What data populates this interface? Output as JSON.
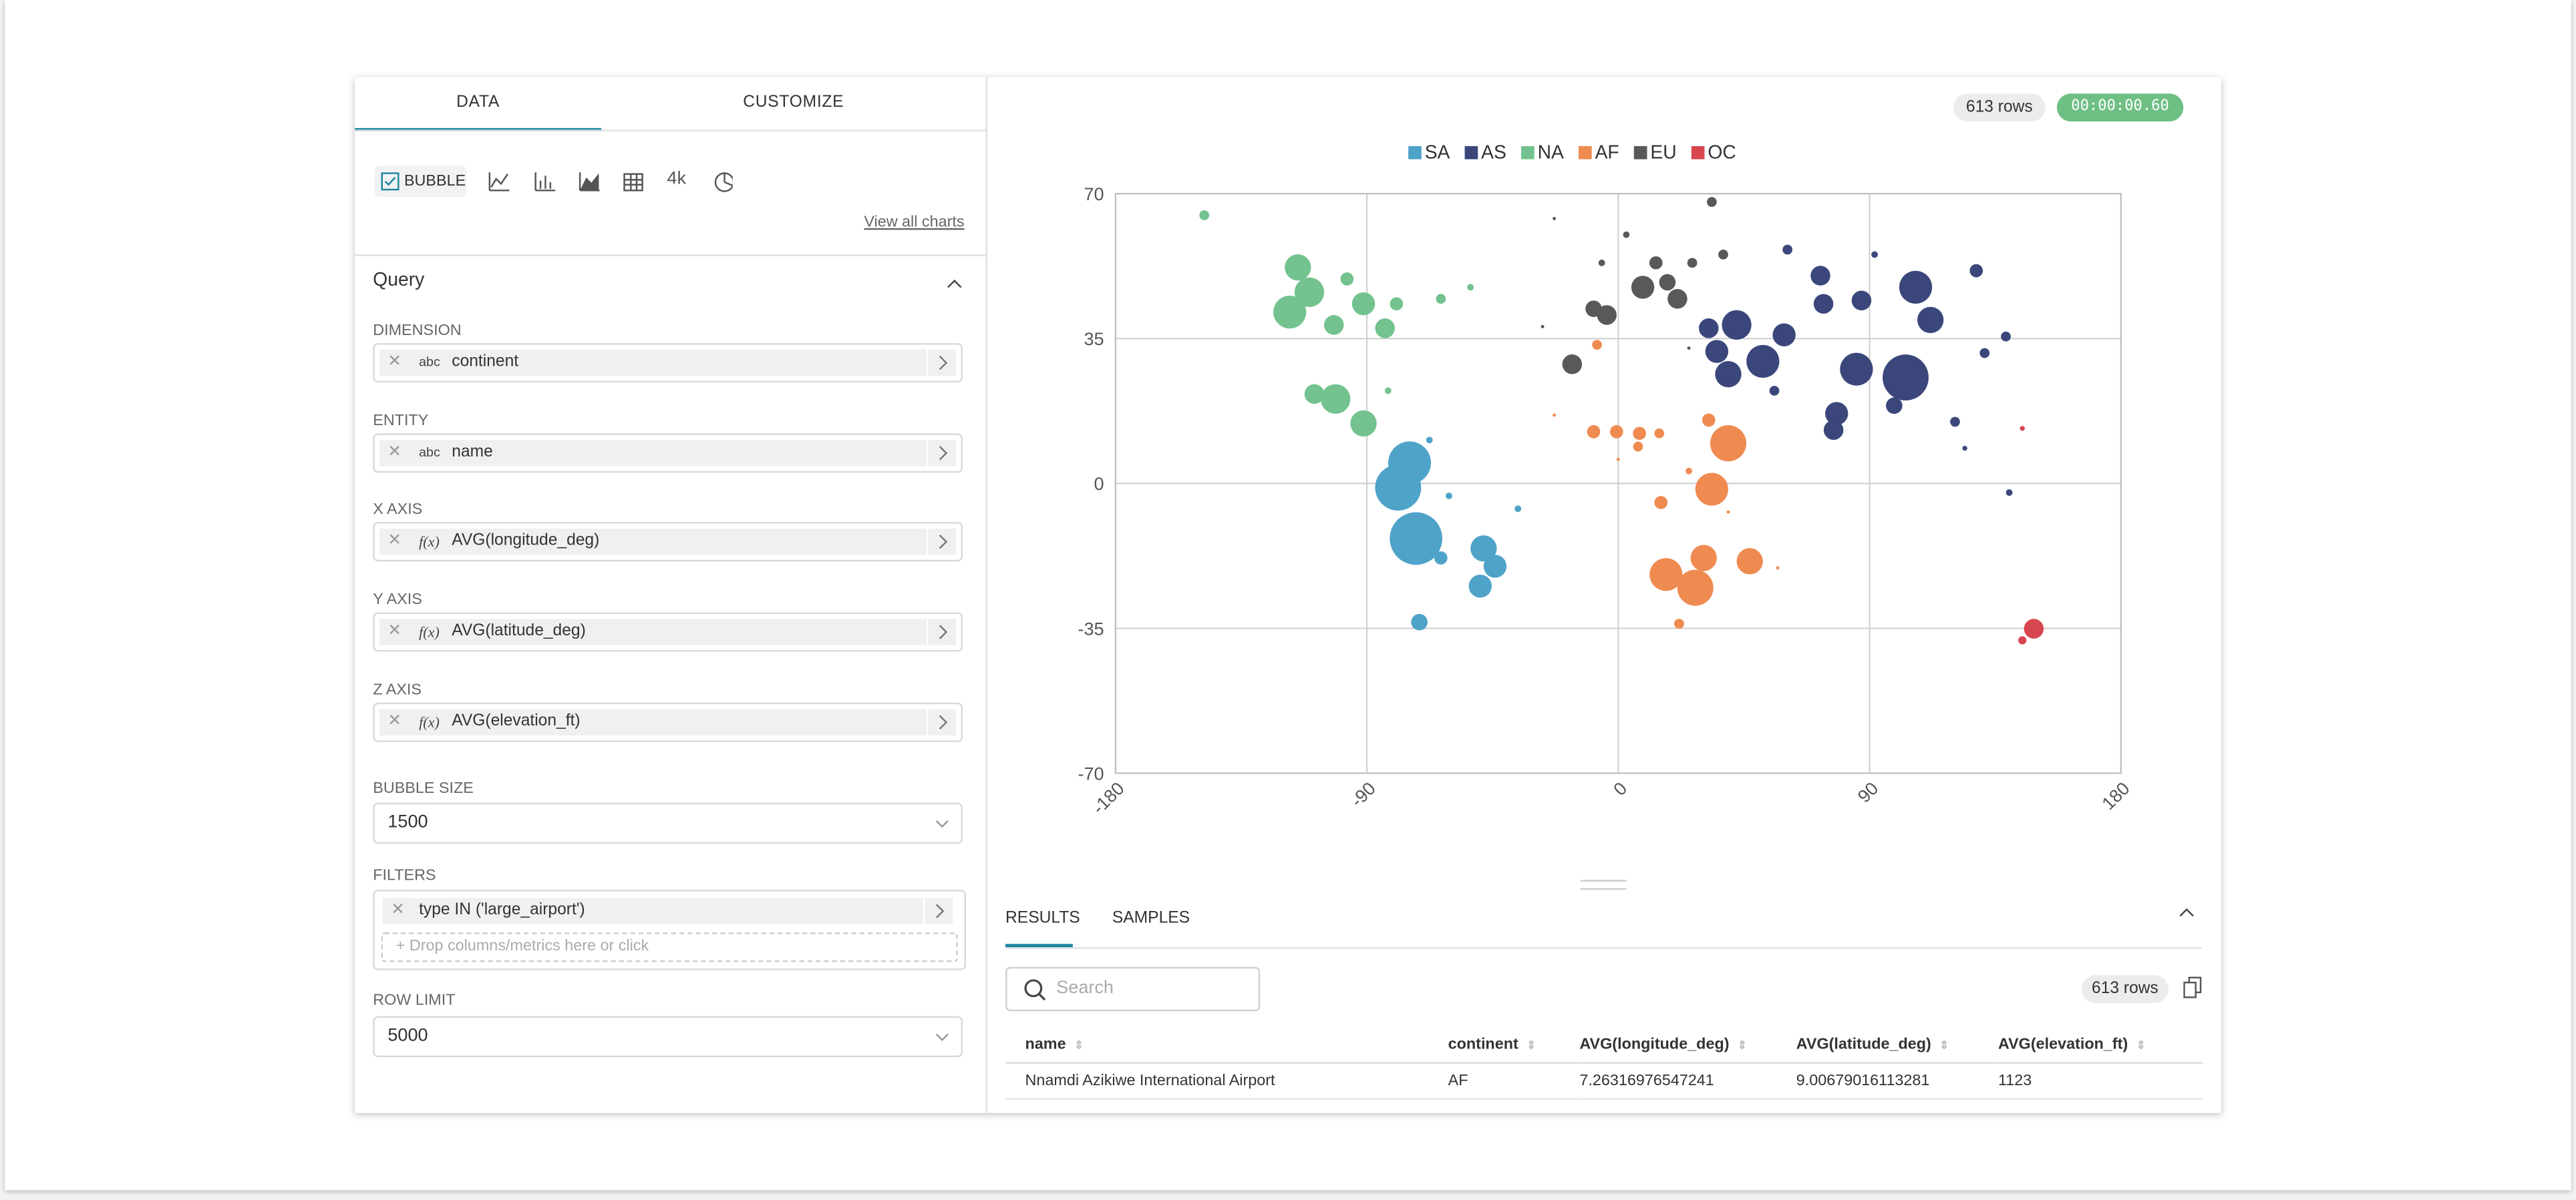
{
  "tabs": [
    "DATA",
    "CUSTOMIZE"
  ],
  "chart_types": {
    "selected": "BUBBLE",
    "count_label": "4k",
    "view_all": "View all charts"
  },
  "query": {
    "title": "Query",
    "fields": [
      {
        "label": "DIMENSION",
        "kind": "abc",
        "value": "continent"
      },
      {
        "label": "ENTITY",
        "kind": "abc",
        "value": "name"
      },
      {
        "label": "X AXIS",
        "kind": "f(x)",
        "value": "AVG(longitude_deg)"
      },
      {
        "label": "Y AXIS",
        "kind": "f(x)",
        "value": "AVG(latitude_deg)"
      },
      {
        "label": "Z AXIS",
        "kind": "f(x)",
        "value": "AVG(elevation_ft)"
      }
    ]
  },
  "bubble_size": {
    "label": "BUBBLE SIZE",
    "value": "1500"
  },
  "filters": {
    "label": "FILTERS",
    "value": "type IN ('large_airport')",
    "placeholder": "Drop columns/metrics here or click"
  },
  "row_limit": {
    "label": "ROW LIMIT",
    "value": "5000"
  },
  "status": {
    "rows": "613 rows",
    "timer": "00:00:00.60"
  },
  "chart_data": {
    "type": "bubble",
    "legend": "top",
    "grid": true,
    "xlim": [
      -180,
      180
    ],
    "ylim": [
      -70,
      70
    ],
    "xticks": [
      -180,
      -90,
      0,
      90,
      180
    ],
    "yticks": [
      -70,
      -35,
      0,
      35,
      70
    ],
    "series": [
      {
        "name": "SA",
        "color": "#4fa3c9",
        "x": [
          -74.7,
          -78.8,
          -72.4,
          -71.2,
          -48.2,
          -49.4,
          -44.1,
          -63.5,
          -60.6,
          -35.9,
          -67.6
        ],
        "values": [
          5.0,
          -1.0,
          -13.3,
          -33.5,
          -15.7,
          -24.8,
          -20.0,
          -18.0,
          -3.0,
          -6.1,
          10.5
        ],
        "size": [
          5577,
          6468,
          8448,
          825,
          2112,
          1617,
          1617,
          528,
          132,
          132,
          132
        ]
      },
      {
        "name": "AS",
        "color": "#3b477b",
        "x": [
          32.4,
          42.4,
          51.8,
          39.4,
          59.4,
          35.3,
          73.5,
          87.1,
          85.3,
          102.9,
          106.5,
          111.8,
          72.4,
          78.2,
          77.1,
          98.8,
          120.6,
          128.2,
          131.2,
          140.0,
          138.8,
          60.6,
          55.9,
          91.8,
          124.1
        ],
        "values": [
          37.5,
          38.3,
          29.5,
          26.4,
          35.9,
          31.9,
          43.4,
          44.2,
          27.6,
          25.6,
          47.4,
          39.5,
          50.2,
          16.9,
          12.9,
          18.8,
          14.9,
          51.4,
          31.5,
          -2.2,
          35.5,
          56.5,
          22.4,
          55.3,
          8.5
        ],
        "size": [
          1188,
          2673,
          3300,
          2112,
          1617,
          1617,
          1188,
          1188,
          3300,
          6468,
          3300,
          2112,
          1188,
          1617,
          1188,
          825,
          297,
          528,
          297,
          132,
          297,
          297,
          297,
          132,
          74
        ]
      },
      {
        "name": "NA",
        "color": "#73c28f",
        "x": [
          -148.2,
          -114.7,
          -117.6,
          -110.6,
          -101.8,
          -91.2,
          -83.5,
          -101.2,
          -91.2,
          -108.8,
          -97.1,
          -63.5,
          -52.9,
          -82.4,
          -79.4
        ],
        "values": [
          64.8,
          52.2,
          41.4,
          46.2,
          38.3,
          43.4,
          37.5,
          20.4,
          14.5,
          21.6,
          49.4,
          44.6,
          47.4,
          22.4,
          43.4
        ],
        "size": [
          297,
          2112,
          3300,
          2673,
          1188,
          1617,
          1188,
          2673,
          2112,
          1188,
          528,
          297,
          132,
          132,
          528
        ]
      },
      {
        "name": "AF",
        "color": "#ef8b51",
        "x": [
          39.4,
          33.5,
          27.6,
          17.1,
          30.6,
          47.1,
          15.3,
          21.8,
          -8.8,
          -0.6,
          7.6,
          7.1,
          14.7,
          32.4,
          -7.6,
          25.3,
          57.1,
          39.4,
          -22.9,
          0
        ],
        "values": [
          9.7,
          -1.4,
          -25.2,
          -22.0,
          -18.0,
          -18.8,
          -4.6,
          -33.9,
          12.5,
          12.5,
          12.1,
          8.9,
          12.1,
          15.3,
          33.5,
          3.0,
          -20.4,
          -6.9,
          16.5,
          5.8
        ],
        "size": [
          3993,
          3300,
          3993,
          3300,
          2112,
          2112,
          528,
          297,
          528,
          528,
          528,
          297,
          297,
          528,
          297,
          132,
          33,
          33,
          33,
          33
        ]
      },
      {
        "name": "EU",
        "color": "#595959",
        "x": [
          -16.5,
          -8.8,
          -4.1,
          8.8,
          17.6,
          21.2,
          13.5,
          33.5,
          26.5,
          37.6,
          -5.9,
          2.9,
          -22.9,
          -27.1,
          25.3
        ],
        "values": [
          28.8,
          42.2,
          40.7,
          47.4,
          48.6,
          44.6,
          53.3,
          68.0,
          53.3,
          55.3,
          53.3,
          60.1,
          64.0,
          37.9,
          32.7
        ],
        "size": [
          1188,
          825,
          1188,
          1617,
          825,
          1188,
          528,
          297,
          297,
          297,
          132,
          132,
          33,
          33,
          33
        ]
      },
      {
        "name": "OC",
        "color": "#d8464f",
        "x": [
          148.8,
          144.7,
          144.7
        ],
        "values": [
          -35.1,
          -37.9,
          13.3
        ],
        "size": [
          1188,
          206,
          74
        ]
      }
    ]
  },
  "results": {
    "tabs": [
      "RESULTS",
      "SAMPLES"
    ],
    "search_placeholder": "Search",
    "rows_badge": "613 rows",
    "columns": [
      "name",
      "continent",
      "AVG(longitude_deg)",
      "AVG(latitude_deg)",
      "AVG(elevation_ft)"
    ],
    "rows": [
      [
        "Nnamdi Azikiwe International Airport",
        "AF",
        "7.26316976547241",
        "9.00679016113281",
        "1123"
      ]
    ]
  }
}
